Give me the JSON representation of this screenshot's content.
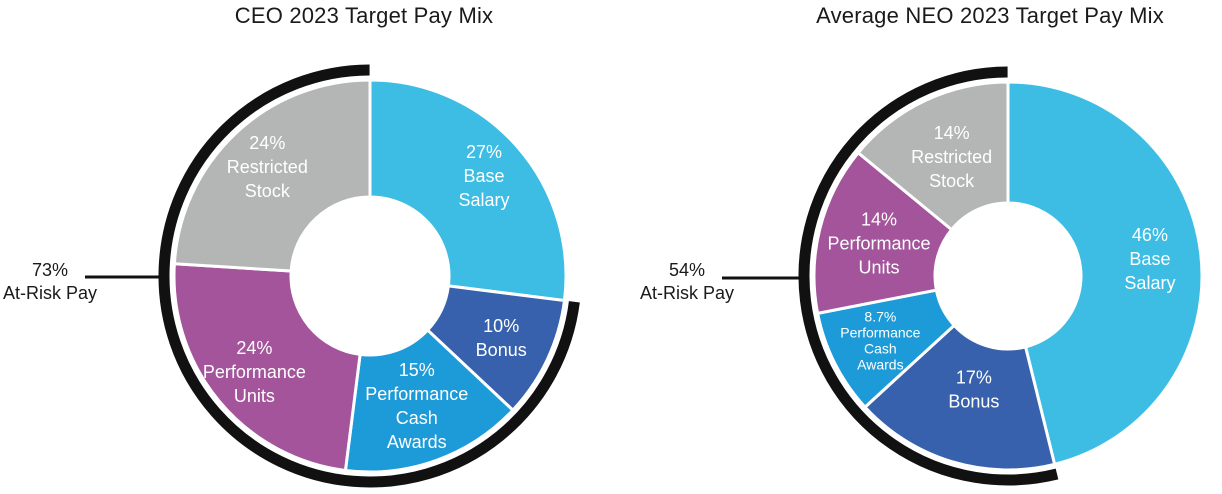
{
  "chart_data": [
    {
      "type": "pie",
      "style": "donut",
      "title": "CEO 2023 Target Pay Mix",
      "slices": [
        {
          "name": "Base Salary",
          "value": 27,
          "label_lines": [
            "27%",
            "Base",
            "Salary"
          ],
          "color": "#3dbde3"
        },
        {
          "name": "Bonus",
          "value": 10,
          "label_lines": [
            "10%",
            "Bonus"
          ],
          "color": "#3761ad"
        },
        {
          "name": "Performance Cash Awards",
          "value": 15,
          "label_lines": [
            "15%",
            "Performance",
            "Cash",
            "Awards"
          ],
          "color": "#1d9bd8"
        },
        {
          "name": "Performance Units",
          "value": 24,
          "label_lines": [
            "24%",
            "Performance",
            "Units"
          ],
          "color": "#a3549b"
        },
        {
          "name": "Restricted Stock",
          "value": 24,
          "label_lines": [
            "24%",
            "Restricted",
            "Stock"
          ],
          "color": "#b4b5b5"
        }
      ],
      "at_risk": {
        "value_label": "73%",
        "text": "At-Risk Pay"
      }
    },
    {
      "type": "pie",
      "style": "donut",
      "title": "Average NEO 2023 Target Pay Mix",
      "slices": [
        {
          "name": "Base Salary",
          "value": 46,
          "label_lines": [
            "46%",
            "Base",
            "Salary"
          ],
          "color": "#3dbde3"
        },
        {
          "name": "Bonus",
          "value": 17,
          "label_lines": [
            "17%",
            "Bonus"
          ],
          "color": "#3761ad"
        },
        {
          "name": "Performance Cash Awards",
          "value": 8.7,
          "label_lines": [
            "8.7%",
            "Performance",
            "Cash",
            "Awards"
          ],
          "color": "#1d9bd8"
        },
        {
          "name": "Performance Units",
          "value": 14,
          "label_lines": [
            "14%",
            "Performance",
            "Units"
          ],
          "color": "#a3549b"
        },
        {
          "name": "Restricted Stock",
          "value": 14,
          "label_lines": [
            "14%",
            "Restricted",
            "Stock"
          ],
          "color": "#b4b5b5"
        }
      ],
      "at_risk": {
        "value_label": "54%",
        "text": "At-Risk Pay"
      }
    }
  ]
}
